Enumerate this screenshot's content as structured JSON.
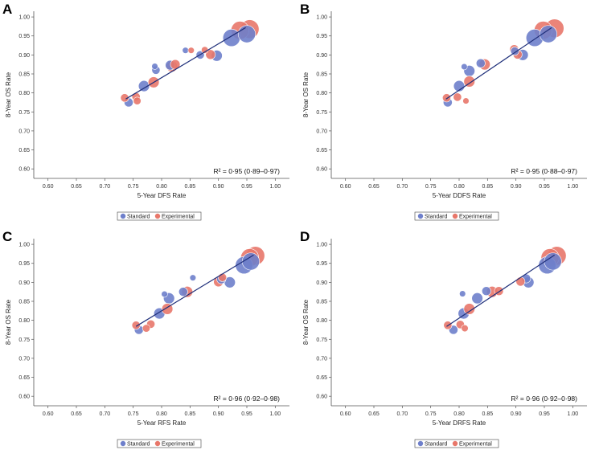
{
  "colors": {
    "standard": "#6E7FCB",
    "experimental": "#E8776A",
    "fit_line": "#1F2F7A",
    "axis": "#555555"
  },
  "chart_data": [
    {
      "type": "scatter",
      "panel": "A",
      "xlabel": "5-Year DFS Rate",
      "ylabel": "8-Year OS Rate",
      "xlim": [
        0.575,
        1.025
      ],
      "ylim": [
        0.575,
        1.015
      ],
      "xticks": [
        "0.60",
        "0.65",
        "0.70",
        "0.75",
        "0.80",
        "0.85",
        "0.90",
        "0.95",
        "1.00"
      ],
      "yticks": [
        "0.60",
        "0.65",
        "0.70",
        "0.75",
        "0.80",
        "0.85",
        "0.90",
        "0.95",
        "1.00"
      ],
      "r2_text": "R² = 0·95 (0·89–0·97)",
      "fit_line": {
        "x": [
          0.737,
          0.948
        ],
        "y": [
          0.784,
          0.972
        ]
      },
      "legend": {
        "standard": "Standard",
        "experimental": "Experimental"
      },
      "series": [
        {
          "name": "Standard",
          "points": [
            {
              "x": 0.742,
              "y": 0.775,
              "size": 1.3
            },
            {
              "x": 0.769,
              "y": 0.818,
              "size": 1.6
            },
            {
              "x": 0.79,
              "y": 0.86,
              "size": 1.2
            },
            {
              "x": 0.788,
              "y": 0.87,
              "size": 0.9
            },
            {
              "x": 0.815,
              "y": 0.873,
              "size": 1.4
            },
            {
              "x": 0.842,
              "y": 0.912,
              "size": 0.9
            },
            {
              "x": 0.868,
              "y": 0.9,
              "size": 1.2
            },
            {
              "x": 0.897,
              "y": 0.898,
              "size": 1.6
            },
            {
              "x": 0.923,
              "y": 0.945,
              "size": 2.5
            },
            {
              "x": 0.95,
              "y": 0.955,
              "size": 2.5
            }
          ]
        },
        {
          "name": "Experimental",
          "points": [
            {
              "x": 0.735,
              "y": 0.787,
              "size": 1.2
            },
            {
              "x": 0.755,
              "y": 0.79,
              "size": 1.2
            },
            {
              "x": 0.757,
              "y": 0.779,
              "size": 1.1
            },
            {
              "x": 0.786,
              "y": 0.828,
              "size": 1.6
            },
            {
              "x": 0.818,
              "y": 0.87,
              "size": 1.6
            },
            {
              "x": 0.824,
              "y": 0.875,
              "size": 1.4
            },
            {
              "x": 0.852,
              "y": 0.912,
              "size": 0.9
            },
            {
              "x": 0.876,
              "y": 0.913,
              "size": 1.0
            },
            {
              "x": 0.886,
              "y": 0.901,
              "size": 1.4
            },
            {
              "x": 0.938,
              "y": 0.965,
              "size": 2.6
            },
            {
              "x": 0.955,
              "y": 0.968,
              "size": 2.7
            }
          ]
        }
      ]
    },
    {
      "type": "scatter",
      "panel": "B",
      "xlabel": "5-Year DDFS Rate",
      "ylabel": "8-Year OS Rate",
      "xlim": [
        0.575,
        1.025
      ],
      "ylim": [
        0.575,
        1.015
      ],
      "xticks": [
        "0.60",
        "0.65",
        "0.70",
        "0.75",
        "0.80",
        "0.85",
        "0.90",
        "0.95",
        "1.00"
      ],
      "yticks": [
        "0.60",
        "0.65",
        "0.70",
        "0.75",
        "0.80",
        "0.85",
        "0.90",
        "0.95",
        "1.00"
      ],
      "r2_text": "R² = 0·95 (0·88–0·97)",
      "fit_line": {
        "x": [
          0.777,
          0.963
        ],
        "y": [
          0.784,
          0.972
        ]
      },
      "legend": {
        "standard": "Standard",
        "experimental": "Experimental"
      },
      "series": [
        {
          "name": "Standard",
          "points": [
            {
              "x": 0.78,
              "y": 0.775,
              "size": 1.3
            },
            {
              "x": 0.8,
              "y": 0.818,
              "size": 1.6
            },
            {
              "x": 0.809,
              "y": 0.869,
              "size": 0.9
            },
            {
              "x": 0.818,
              "y": 0.858,
              "size": 1.6
            },
            {
              "x": 0.838,
              "y": 0.878,
              "size": 1.3
            },
            {
              "x": 0.898,
              "y": 0.91,
              "size": 1.2
            },
            {
              "x": 0.912,
              "y": 0.9,
              "size": 1.6
            },
            {
              "x": 0.933,
              "y": 0.945,
              "size": 2.5
            },
            {
              "x": 0.957,
              "y": 0.955,
              "size": 2.5
            }
          ]
        },
        {
          "name": "Experimental",
          "points": [
            {
              "x": 0.778,
              "y": 0.787,
              "size": 1.2
            },
            {
              "x": 0.797,
              "y": 0.789,
              "size": 1.2
            },
            {
              "x": 0.812,
              "y": 0.779,
              "size": 0.9
            },
            {
              "x": 0.818,
              "y": 0.83,
              "size": 1.6
            },
            {
              "x": 0.845,
              "y": 0.875,
              "size": 1.6
            },
            {
              "x": 0.897,
              "y": 0.915,
              "size": 1.3
            },
            {
              "x": 0.903,
              "y": 0.901,
              "size": 1.3
            },
            {
              "x": 0.948,
              "y": 0.965,
              "size": 2.6
            },
            {
              "x": 0.968,
              "y": 0.97,
              "size": 2.7
            }
          ]
        }
      ]
    },
    {
      "type": "scatter",
      "panel": "C",
      "xlabel": "5-Year RFS Rate",
      "ylabel": "8-Year OS Rate",
      "xlim": [
        0.575,
        1.025
      ],
      "ylim": [
        0.575,
        1.015
      ],
      "xticks": [
        "0.60",
        "0.65",
        "0.70",
        "0.75",
        "0.80",
        "0.85",
        "0.90",
        "0.95",
        "1.00"
      ],
      "yticks": [
        "0.60",
        "0.65",
        "0.70",
        "0.75",
        "0.80",
        "0.85",
        "0.90",
        "0.95",
        "1.00"
      ],
      "r2_text": "R² = 0·96 (0·92–0·98)",
      "fit_line": {
        "x": [
          0.755,
          0.962
        ],
        "y": [
          0.784,
          0.972
        ]
      },
      "legend": {
        "standard": "Standard",
        "experimental": "Experimental"
      },
      "series": [
        {
          "name": "Standard",
          "points": [
            {
              "x": 0.76,
              "y": 0.775,
              "size": 1.3
            },
            {
              "x": 0.796,
              "y": 0.818,
              "size": 1.6
            },
            {
              "x": 0.805,
              "y": 0.869,
              "size": 0.9
            },
            {
              "x": 0.813,
              "y": 0.858,
              "size": 1.6
            },
            {
              "x": 0.838,
              "y": 0.875,
              "size": 1.3
            },
            {
              "x": 0.855,
              "y": 0.912,
              "size": 0.9
            },
            {
              "x": 0.905,
              "y": 0.908,
              "size": 1.3
            },
            {
              "x": 0.92,
              "y": 0.9,
              "size": 1.6
            },
            {
              "x": 0.945,
              "y": 0.945,
              "size": 2.5
            },
            {
              "x": 0.957,
              "y": 0.955,
              "size": 2.5
            }
          ]
        },
        {
          "name": "Experimental",
          "points": [
            {
              "x": 0.755,
              "y": 0.787,
              "size": 1.2
            },
            {
              "x": 0.773,
              "y": 0.779,
              "size": 1.1
            },
            {
              "x": 0.781,
              "y": 0.79,
              "size": 1.2
            },
            {
              "x": 0.81,
              "y": 0.83,
              "size": 1.6
            },
            {
              "x": 0.845,
              "y": 0.875,
              "size": 1.6
            },
            {
              "x": 0.9,
              "y": 0.901,
              "size": 1.4
            },
            {
              "x": 0.907,
              "y": 0.913,
              "size": 1.2
            },
            {
              "x": 0.955,
              "y": 0.965,
              "size": 2.6
            },
            {
              "x": 0.965,
              "y": 0.97,
              "size": 2.7
            }
          ]
        }
      ]
    },
    {
      "type": "scatter",
      "panel": "D",
      "xlabel": "5-Year DRFS Rate",
      "ylabel": "8-Year OS Rate",
      "xlim": [
        0.575,
        1.025
      ],
      "ylim": [
        0.575,
        1.015
      ],
      "xticks": [
        "0.60",
        "0.65",
        "0.70",
        "0.75",
        "0.80",
        "0.85",
        "0.90",
        "0.95",
        "1.00"
      ],
      "yticks": [
        "0.60",
        "0.65",
        "0.70",
        "0.75",
        "0.80",
        "0.85",
        "0.90",
        "0.95",
        "1.00"
      ],
      "r2_text": "R² = 0·96 (0·92–0·98)",
      "fit_line": {
        "x": [
          0.778,
          0.968
        ],
        "y": [
          0.784,
          0.972
        ]
      },
      "legend": {
        "standard": "Standard",
        "experimental": "Experimental"
      },
      "series": [
        {
          "name": "Standard",
          "points": [
            {
              "x": 0.79,
              "y": 0.775,
              "size": 1.3
            },
            {
              "x": 0.808,
              "y": 0.818,
              "size": 1.6
            },
            {
              "x": 0.806,
              "y": 0.87,
              "size": 0.9
            },
            {
              "x": 0.832,
              "y": 0.858,
              "size": 1.6
            },
            {
              "x": 0.848,
              "y": 0.877,
              "size": 1.3
            },
            {
              "x": 0.918,
              "y": 0.91,
              "size": 1.3
            },
            {
              "x": 0.922,
              "y": 0.9,
              "size": 1.6
            },
            {
              "x": 0.955,
              "y": 0.945,
              "size": 2.5
            },
            {
              "x": 0.965,
              "y": 0.955,
              "size": 2.5
            }
          ]
        },
        {
          "name": "Experimental",
          "points": [
            {
              "x": 0.78,
              "y": 0.787,
              "size": 1.2
            },
            {
              "x": 0.802,
              "y": 0.789,
              "size": 1.2
            },
            {
              "x": 0.81,
              "y": 0.779,
              "size": 1.0
            },
            {
              "x": 0.818,
              "y": 0.83,
              "size": 1.6
            },
            {
              "x": 0.858,
              "y": 0.875,
              "size": 1.6
            },
            {
              "x": 0.87,
              "y": 0.877,
              "size": 1.3
            },
            {
              "x": 0.908,
              "y": 0.902,
              "size": 1.3
            },
            {
              "x": 0.96,
              "y": 0.965,
              "size": 2.6
            },
            {
              "x": 0.972,
              "y": 0.97,
              "size": 2.7
            }
          ]
        }
      ]
    }
  ]
}
